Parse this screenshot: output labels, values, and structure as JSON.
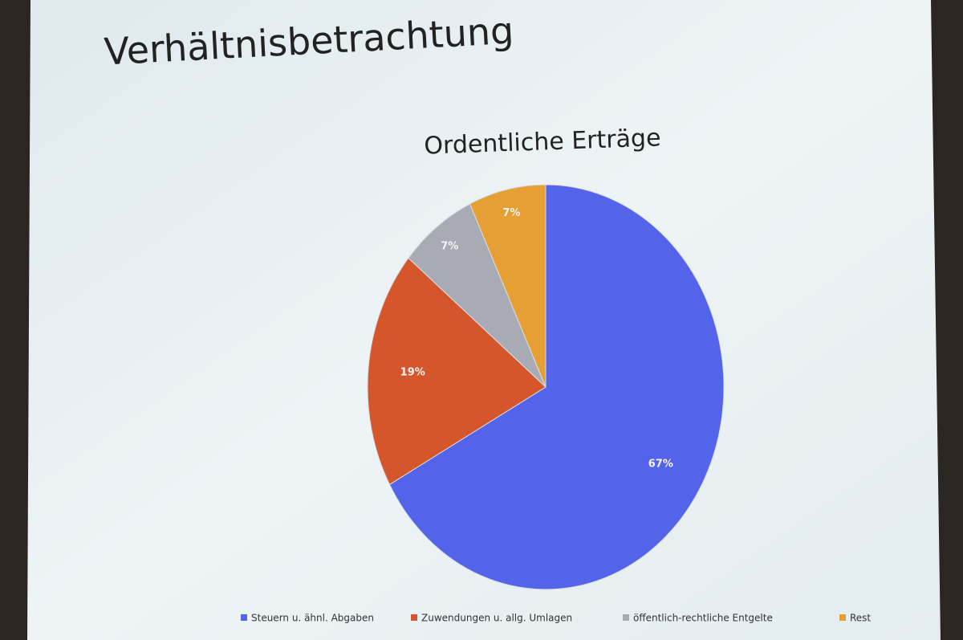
{
  "slide": {
    "title": "Verhältnisbetrachtung"
  },
  "chart_data": {
    "type": "pie",
    "title": "Ordentliche Erträge",
    "categories": [
      "Steuern u. ähnl. Abgaben",
      "Zuwendungen u. allg. Umlagen",
      "öffentlich-rechtliche Entgelte",
      "Rest"
    ],
    "values": [
      67,
      19,
      7,
      7
    ],
    "value_labels": [
      "67%",
      "19%",
      "7%",
      "7%"
    ],
    "colors": [
      "#5363ea",
      "#d6562c",
      "#a9abb4",
      "#e59f34"
    ],
    "legend": "bottom"
  }
}
